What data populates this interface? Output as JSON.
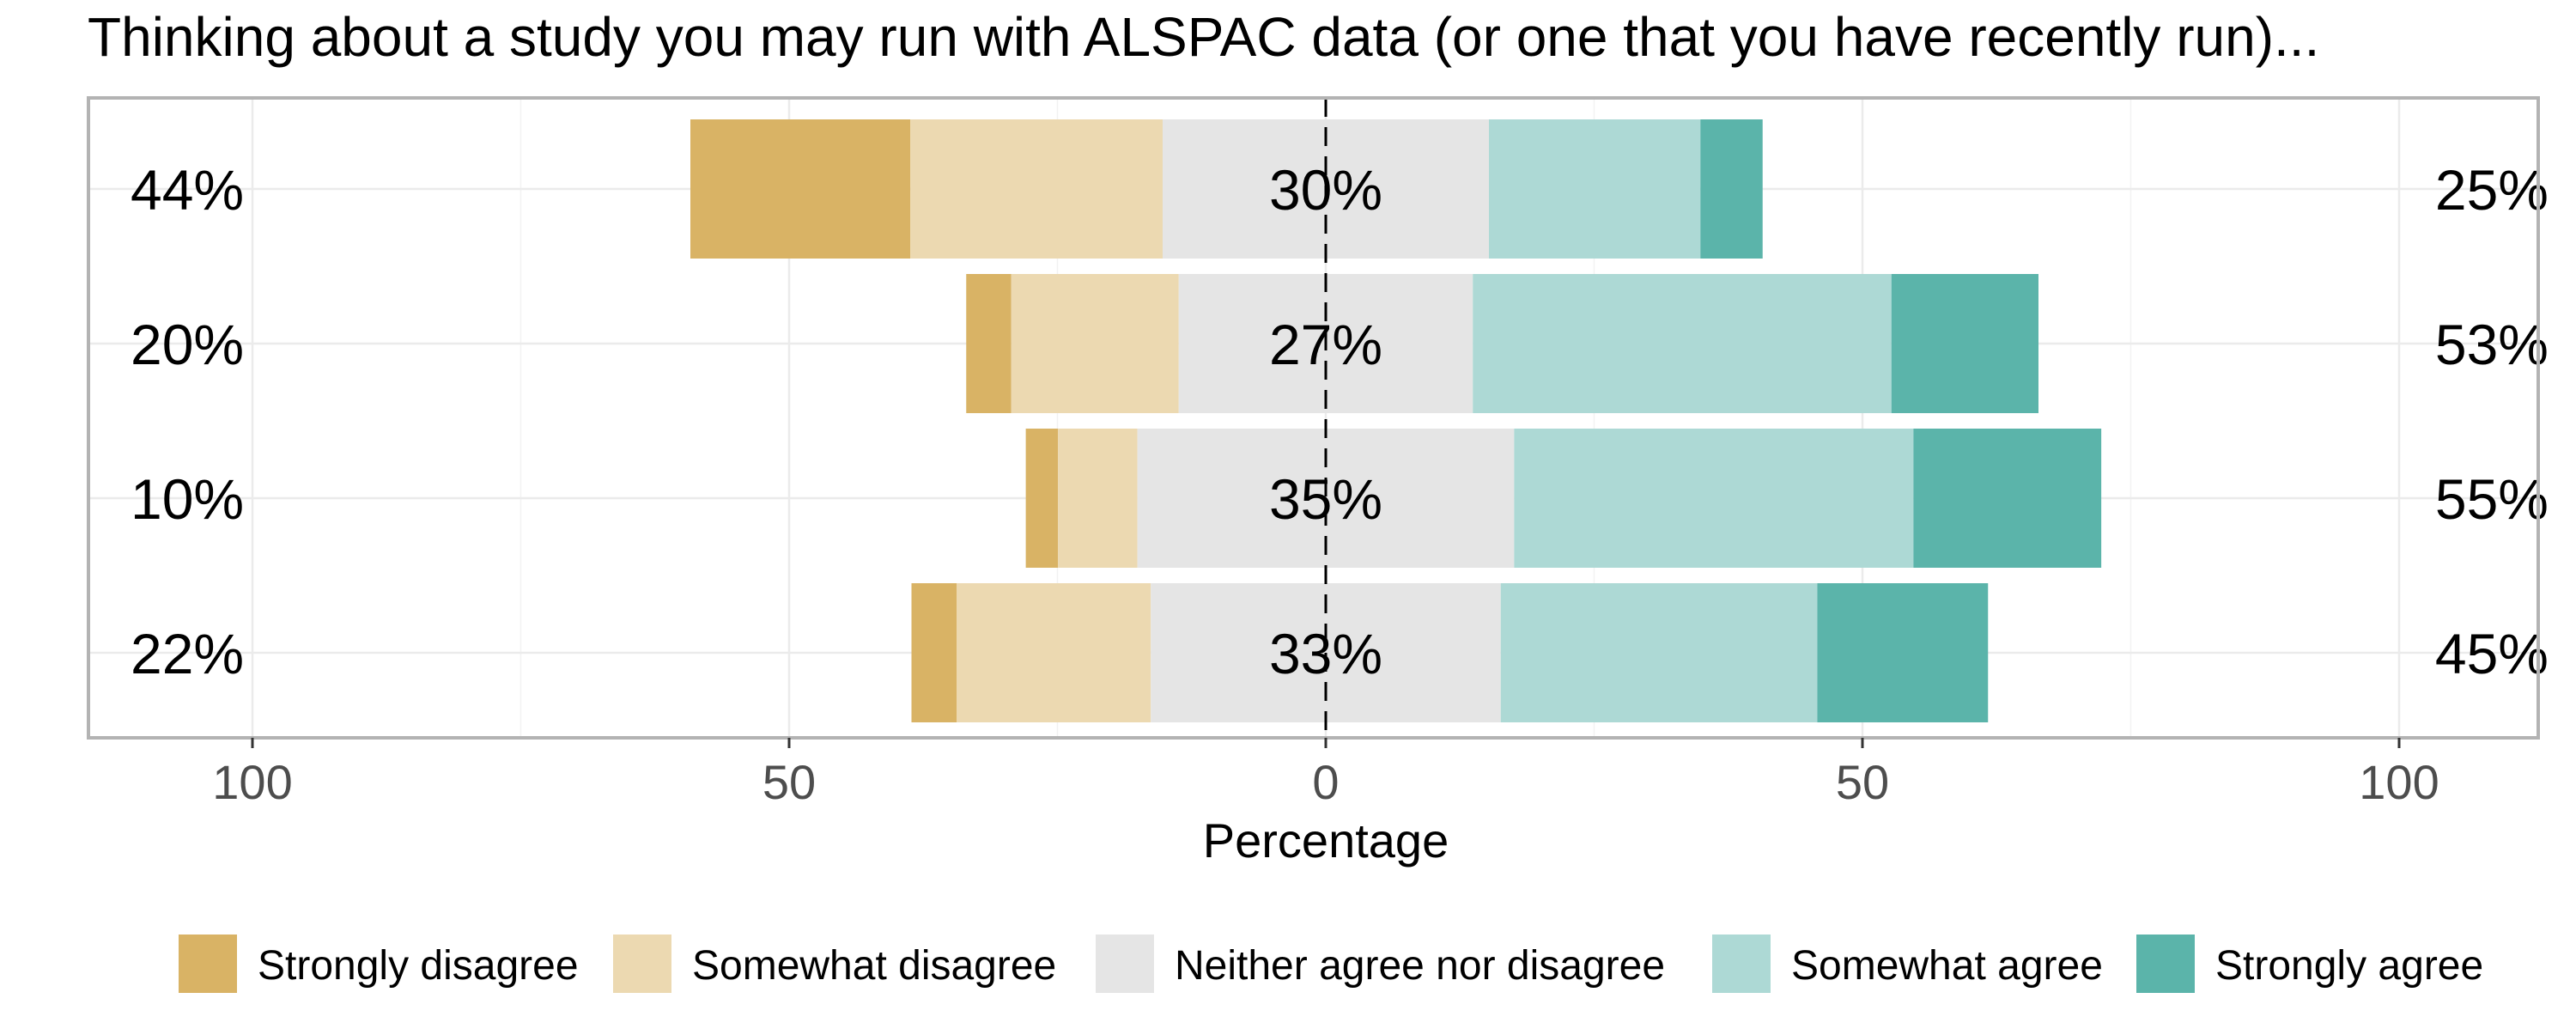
{
  "chart_data": {
    "type": "bar",
    "orientation": "horizontal",
    "stacked": "diverging",
    "title": "Thinking about a study you may run with ALSPAC data (or one that you have recently run)...",
    "xlabel": "Percentage",
    "ylabel": "",
    "xlim": [
      -100,
      100
    ],
    "x_ticks": [
      -100,
      -50,
      0,
      50,
      100
    ],
    "x_tick_labels": [
      "100",
      "50",
      "0",
      "50",
      "100"
    ],
    "grid": true,
    "legend_position": "bottom",
    "levels": [
      {
        "name": "Strongly disagree",
        "color": "#D9B365"
      },
      {
        "name": "Somewhat disagree",
        "color": "#ECD9B1"
      },
      {
        "name": "Neither agree nor disagree",
        "color": "#E5E5E5"
      },
      {
        "name": "Somewhat agree",
        "color": "#ADD9D5"
      },
      {
        "name": "Strongly agree",
        "color": "#5BB4AA"
      }
    ],
    "rows": [
      {
        "values": [
          20.5,
          23.5,
          30.4,
          19.7,
          5.8
        ],
        "left_label": "44%",
        "center_label": "30%",
        "right_label": "25%"
      },
      {
        "values": [
          4.2,
          15.6,
          27.4,
          39.0,
          13.7
        ],
        "left_label": "20%",
        "center_label": "27%",
        "right_label": "53%"
      },
      {
        "values": [
          3.0,
          7.4,
          35.1,
          37.2,
          17.5
        ],
        "left_label": "10%",
        "center_label": "35%",
        "right_label": "55%"
      },
      {
        "values": [
          4.2,
          18.1,
          32.6,
          29.5,
          15.9
        ],
        "left_label": "22%",
        "center_label": "33%",
        "right_label": "45%"
      }
    ]
  }
}
